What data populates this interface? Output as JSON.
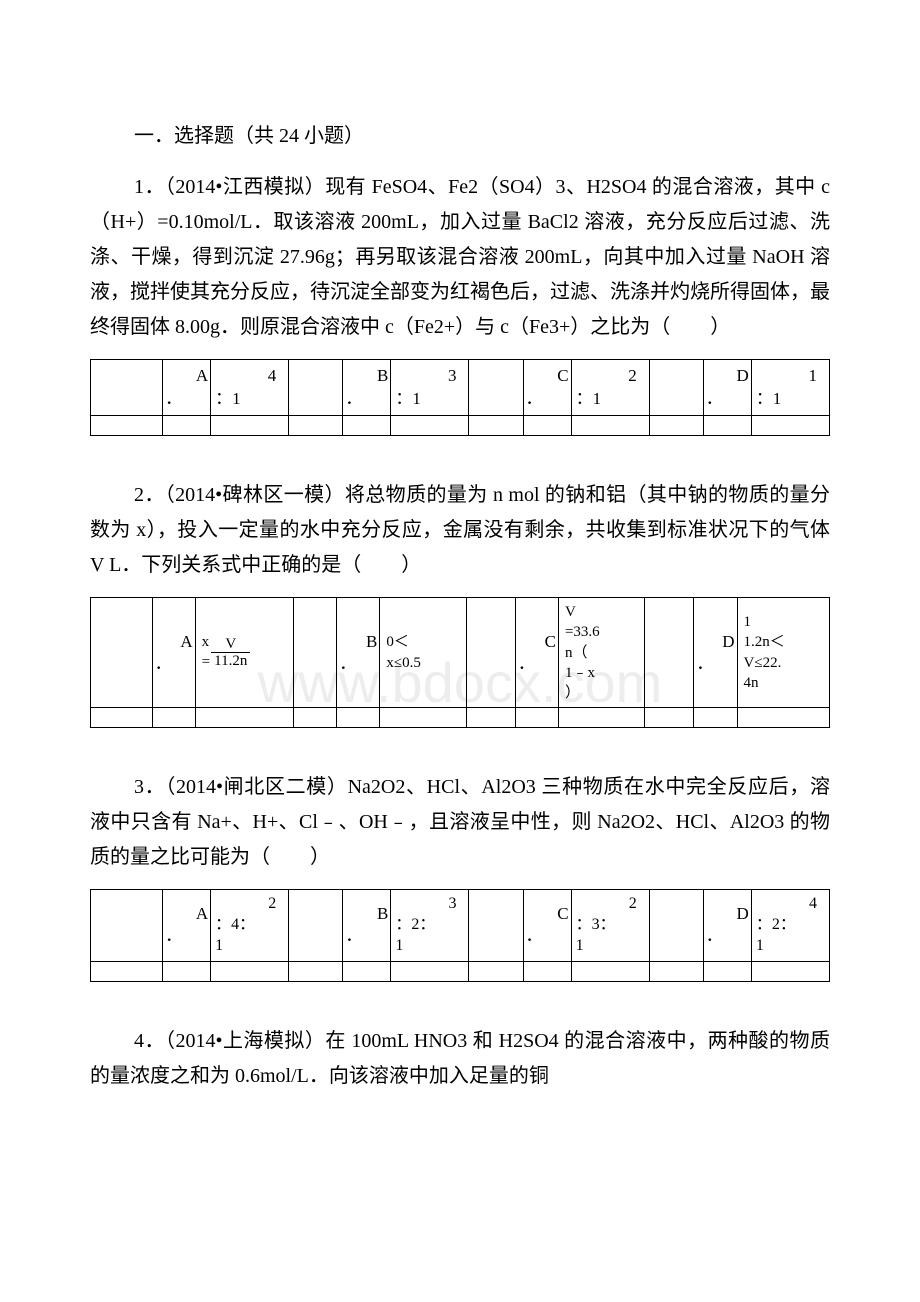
{
  "colors": {
    "text": "#000000",
    "background": "#ffffff",
    "border": "#000000",
    "watermark": "rgba(0,0,0,0.07)"
  },
  "fonts": {
    "body_family": "SimSun",
    "body_size_pt": 15,
    "table_size_pt": 13,
    "watermark_size_pt": 42
  },
  "section_header": "一．选择题（共 24 小题）",
  "watermark": "www.bdocx.com",
  "questions": [
    {
      "text": "1．（2014•江西模拟）现有 FeSO4、Fe2（SO4）3、H2SO4 的混合溶液，其中 c（H+）=0.10mol/L．取该溶液 200mL，加入过量 BaCl2 溶液，充分反应后过滤、洗涤、干燥，得到沉淀 27.96g；再另取该混合溶液 200mL，向其中加入过量 NaOH 溶液，搅拌使其充分反应，待沉淀全部变为红褐色后，过滤、洗涤并灼烧所得固体，最终得固体 8.00g．则原混合溶液中 c（Fe2+）与 c（Fe3+）之比为（　　）",
      "table": {
        "col_widths": [
          "12%",
          "8%",
          "13%",
          "9%",
          "8%",
          "13%",
          "9%",
          "8%",
          "13%",
          "9%",
          "8%",
          "13%"
        ],
        "rows": [
          [
            "",
            {
              "type": "label",
              "v": "A．"
            },
            {
              "type": "ratio",
              "v": "4：1"
            },
            "",
            {
              "type": "label",
              "v": "B．"
            },
            {
              "type": "ratio",
              "v": "3：1"
            },
            "",
            {
              "type": "label",
              "v": "C．"
            },
            {
              "type": "ratio",
              "v": "2：1"
            },
            "",
            {
              "type": "label",
              "v": "D．"
            },
            {
              "type": "ratio",
              "v": "1：1"
            }
          ]
        ]
      }
    },
    {
      "text": "2．（2014•碑林区一模）将总物质的量为 n mol 的钠和铝（其中钠的物质的量分数为 x），投入一定量的水中充分反应，金属没有剩余，共收集到标准状况下的气体 V L．下列关系式中正确的是（　　）",
      "table": {
        "col_widths": [
          "10%",
          "7%",
          "16%",
          "7%",
          "7%",
          "14%",
          "8%",
          "7%",
          "14%",
          "8%",
          "7%",
          "15%"
        ],
        "rows": [
          [
            "",
            {
              "type": "label",
              "v": "A．"
            },
            {
              "type": "frac_eq",
              "lhs": "x =",
              "num": "V",
              "den": "11.2n"
            },
            "",
            {
              "type": "label",
              "v": "B．"
            },
            {
              "type": "multiline",
              "lines": [
                "0＜",
                "x≤0.5"
              ]
            },
            "",
            {
              "type": "label",
              "v": "C．"
            },
            {
              "type": "multiline",
              "lines": [
                "V",
                "=33.6",
                "n（",
                "1﹣x",
                "）"
              ]
            },
            "",
            {
              "type": "label",
              "v": "D．"
            },
            {
              "type": "multiline",
              "lines": [
                "1",
                "1.2n＜",
                "V≤22.",
                "4n"
              ]
            }
          ]
        ]
      }
    },
    {
      "text": "3．（2014•闸北区二模）Na2O2、HCl、Al2O3 三种物质在水中完全反应后，溶液中只含有 Na+、H+、Cl﹣、OH﹣，且溶液呈中性，则 Na2O2、HCl、Al2O3 的物质的量之比可能为（　　）",
      "table": {
        "col_widths": [
          "12%",
          "8%",
          "13%",
          "9%",
          "8%",
          "13%",
          "9%",
          "8%",
          "13%",
          "9%",
          "8%",
          "13%"
        ],
        "rows": [
          [
            "",
            {
              "type": "label",
              "v": "A．"
            },
            {
              "type": "ratio3",
              "v": "2：4：1"
            },
            "",
            {
              "type": "label",
              "v": "B．"
            },
            {
              "type": "ratio3",
              "v": "3：2：1"
            },
            "",
            {
              "type": "label",
              "v": "C．"
            },
            {
              "type": "ratio3",
              "v": "2：3：1"
            },
            "",
            {
              "type": "label",
              "v": "D．"
            },
            {
              "type": "ratio3",
              "v": "4：2：1"
            }
          ]
        ]
      }
    },
    {
      "text": "4．（2014•上海模拟）在 100mL HNO3 和 H2SO4 的混合溶液中，两种酸的物质的量浓度之和为 0.6mol/L．向该溶液中加入足量的铜"
    }
  ]
}
